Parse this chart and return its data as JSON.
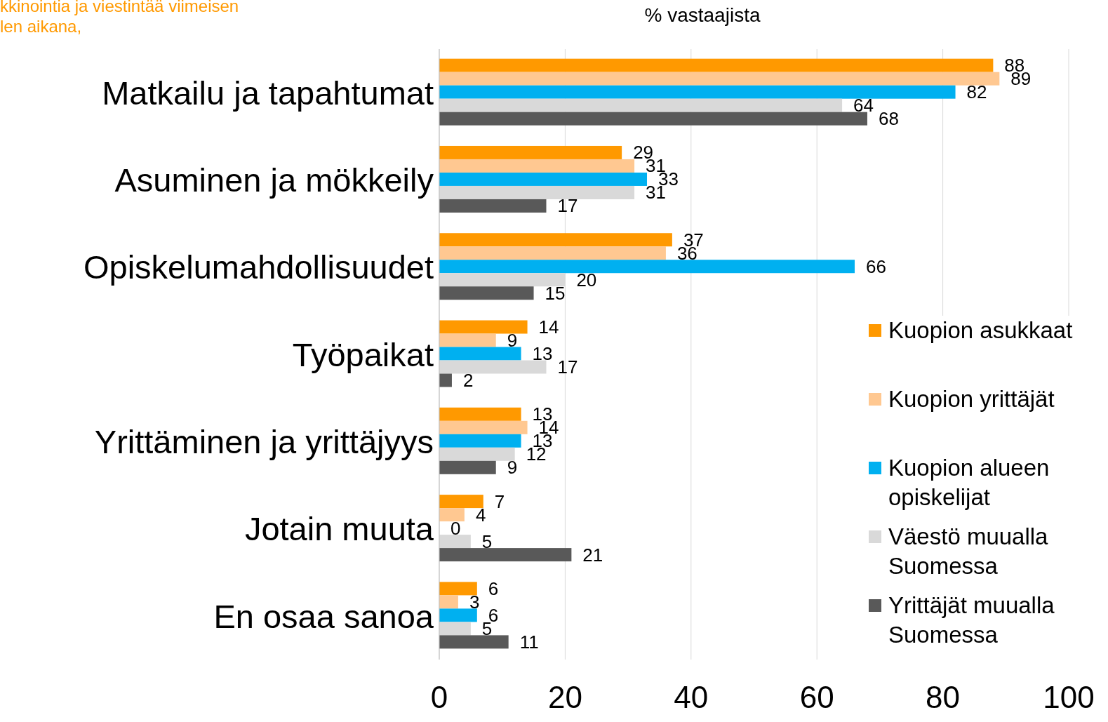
{
  "chart_data": {
    "type": "bar",
    "orientation": "horizontal",
    "title": "kkinointia ja viestintää viimeisen\nlen aikana,",
    "xlabel": "% vastaajista",
    "categories": [
      "Matkailu ja tapahtumat",
      "Asuminen ja mökkeily",
      "Opiskelumahdollisuudet",
      "Työpaikat",
      "Yrittäminen ja yrittäjyys",
      "Jotain muuta",
      "En osaa sanoa"
    ],
    "series": [
      {
        "name": "Kuopion asukkaat",
        "color": "#ff9900",
        "values": [
          88,
          29,
          37,
          14,
          13,
          7,
          6
        ]
      },
      {
        "name": "Kuopion yrittäjät",
        "color": "#ffc891",
        "values": [
          89,
          31,
          36,
          9,
          14,
          4,
          3
        ]
      },
      {
        "name": "Kuopion alueen opiskelijat",
        "color": "#00b0f0",
        "values": [
          82,
          33,
          66,
          13,
          13,
          0,
          6
        ]
      },
      {
        "name": "Väestö muualla Suomessa",
        "color": "#d9d9d9",
        "values": [
          64,
          31,
          20,
          17,
          12,
          5,
          5
        ]
      },
      {
        "name": "Yrittäjät muualla Suomessa",
        "color": "#595959",
        "values": [
          68,
          17,
          15,
          2,
          9,
          21,
          11
        ]
      }
    ],
    "xlim": [
      0,
      100
    ],
    "xticks": [
      0,
      20,
      40,
      60,
      80,
      100
    ],
    "grid": "x",
    "legend": "right",
    "data_labels": true
  }
}
